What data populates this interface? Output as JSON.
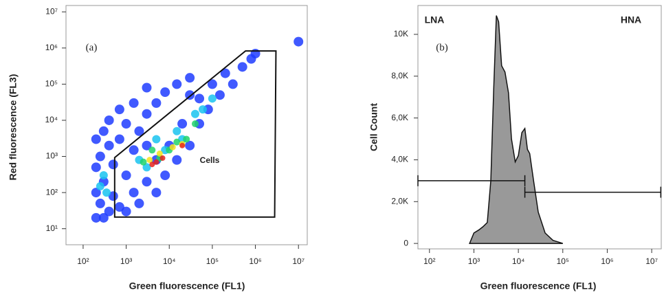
{
  "chart_data": [
    {
      "type": "scatter",
      "panel_label": "(a)",
      "annotation": "Cells",
      "xlabel": "Green fluorescence (FL1)",
      "ylabel": "Red fluorescence (FL3)",
      "xscale": "log",
      "yscale": "log",
      "xlim": [
        40,
        16000000
      ],
      "ylim": [
        3.6,
        15000000
      ],
      "xticks": [
        {
          "value": 100,
          "label": "10²"
        },
        {
          "value": 1000,
          "label": "10³"
        },
        {
          "value": 10000,
          "label": "10⁴"
        },
        {
          "value": 100000,
          "label": "10⁵"
        },
        {
          "value": 1000000,
          "label": "10⁶"
        },
        {
          "value": 10000000,
          "label": "10⁷"
        }
      ],
      "yticks": [
        {
          "value": 10,
          "label": "10¹"
        },
        {
          "value": 100,
          "label": "10²"
        },
        {
          "value": 1000,
          "label": "10³"
        },
        {
          "value": 10000,
          "label": "10⁴"
        },
        {
          "value": 100000,
          "label": "10⁵"
        },
        {
          "value": 1000000,
          "label": "10⁶"
        },
        {
          "value": 10000000,
          "label": "10⁷"
        }
      ],
      "series": [
        {
          "color": "#1f3cff",
          "x": [
            200,
            200,
            200,
            200,
            250,
            250,
            300,
            300,
            300,
            400,
            400,
            400,
            500,
            500,
            700,
            700,
            700,
            1000,
            1000,
            1000,
            1500,
            1500,
            1500,
            2000,
            2000,
            3000,
            3000,
            3000,
            5000,
            5000,
            5000,
            8000,
            8000,
            10000,
            15000,
            15000,
            20000,
            30000,
            30000,
            50000,
            50000,
            80000,
            100000,
            150000,
            200000,
            300000,
            500000,
            800000,
            1000000,
            10000000,
            30000,
            3000
          ],
          "values": [
            20,
            100,
            500,
            3000,
            50,
            1000,
            20,
            200,
            5000,
            30,
            2000,
            10000,
            80,
            600,
            40,
            3000,
            20000,
            30,
            300,
            8000,
            100,
            1500,
            30000,
            50,
            5000,
            200,
            15000,
            80000,
            100,
            800,
            30000,
            300,
            60000,
            2000,
            800,
            100000,
            8000,
            2000,
            150000,
            8000,
            40000,
            20000,
            100000,
            50000,
            200000,
            100000,
            300000,
            500000,
            700000,
            1500000,
            50000,
            2000
          ]
        },
        {
          "color": "#19c3f0",
          "x": [
            250,
            300,
            350,
            2000,
            3000,
            5000,
            8000,
            15000,
            20000,
            40000,
            60000,
            100000
          ],
          "values": [
            150,
            300,
            100,
            800,
            500,
            3000,
            1500,
            5000,
            3000,
            15000,
            20000,
            40000
          ]
        },
        {
          "color": "#21d36a",
          "x": [
            2500,
            4000,
            6000,
            10000,
            15000,
            25000,
            40000
          ],
          "values": [
            700,
            1500,
            900,
            1500,
            2500,
            3000,
            8000
          ]
        },
        {
          "color": "#f2e21c",
          "x": [
            3500,
            6000,
            12000,
            20000
          ],
          "values": [
            800,
            1200,
            1800,
            2200
          ]
        },
        {
          "color": "#e8231c",
          "x": [
            4000,
            5000,
            7000,
            20000
          ],
          "values": [
            600,
            700,
            900,
            2000
          ]
        }
      ],
      "gate": {
        "x": [
          540,
          540,
          590000,
          3000000,
          2800000
        ],
        "y": [
          21,
          930,
          830000,
          830000,
          21
        ]
      }
    },
    {
      "type": "area",
      "panel_label": "(b)",
      "xlabel": "Green fluorescence (FL1)",
      "ylabel": "Cell Count",
      "xscale": "log",
      "color": "#999999",
      "xlim": [
        55,
        16400000
      ],
      "ylim": [
        -260,
        11380
      ],
      "xticks": [
        {
          "value": 100,
          "label": "10²"
        },
        {
          "value": 1000,
          "label": "10³"
        },
        {
          "value": 10000,
          "label": "10⁴"
        },
        {
          "value": 100000,
          "label": "10⁵"
        },
        {
          "value": 1000000,
          "label": "10⁶"
        },
        {
          "value": 10000000,
          "label": "10⁷"
        }
      ],
      "yticks": [
        0,
        {
          "value": 2000,
          "label": "2,0K"
        },
        {
          "value": 4000,
          "label": "4,0K"
        },
        {
          "value": 6000,
          "label": "6,0K"
        },
        {
          "value": 8000,
          "label": "8,0K"
        },
        {
          "value": 10000,
          "label": "10K"
        }
      ],
      "x": [
        800,
        1000,
        1300,
        1600,
        2000,
        2400,
        2800,
        3200,
        3600,
        4200,
        5000,
        6000,
        7000,
        8500,
        10000,
        12000,
        14000,
        16000,
        18000,
        22000,
        28000,
        40000,
        60000,
        100000
      ],
      "values": [
        0,
        500,
        650,
        800,
        1000,
        3000,
        7500,
        10900,
        10600,
        8500,
        8200,
        7200,
        5000,
        3900,
        4200,
        5300,
        5500,
        4500,
        4300,
        3000,
        1500,
        500,
        150,
        0
      ],
      "gates": [
        {
          "name": "LNA",
          "x": [
            55,
            14000
          ],
          "y": 3000
        },
        {
          "name": "HNA",
          "x": [
            14000,
            16000000
          ],
          "y": 2450
        }
      ]
    }
  ]
}
